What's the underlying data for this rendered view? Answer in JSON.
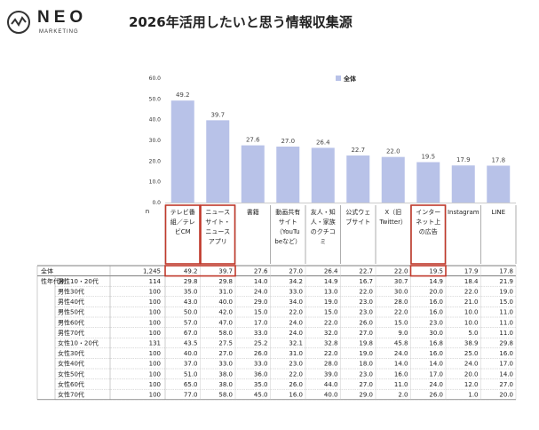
{
  "brand": {
    "name": "NEO",
    "sub": "MARKETING"
  },
  "title": "2026年活用したいと思う情報収集源",
  "chart_data": {
    "type": "bar",
    "legend": "全体",
    "legend_position": "top-right",
    "ylim": [
      0,
      60
    ],
    "yticks": [
      "0.0",
      "10.0",
      "20.0",
      "30.0",
      "40.0",
      "50.0",
      "60.0"
    ],
    "n_label": "n",
    "categories": [
      [
        "テレビ番",
        "組／テレ",
        "ビCM"
      ],
      [
        "ニュース",
        "サイト・",
        "ニュース",
        "アプリ"
      ],
      [
        "書籍"
      ],
      [
        "動画共有",
        "サイト",
        "（YouTu",
        "beなど）"
      ],
      [
        "友人・知",
        "人・家族",
        "のクチコ",
        "ミ"
      ],
      [
        "公式ウェ",
        "ブサイト"
      ],
      [
        "X（旧",
        "Twitter）"
      ],
      [
        "インター",
        "ネット上",
        "の広告"
      ],
      [
        "Instagram"
      ],
      [
        "LINE"
      ]
    ],
    "values": [
      49.2,
      39.7,
      27.6,
      27.0,
      26.4,
      22.7,
      22.0,
      19.5,
      17.9,
      17.8
    ],
    "value_labels": [
      "49.2",
      "39.7",
      "27.6",
      "27.0",
      "26.4",
      "22.7",
      "22.0",
      "19.5",
      "17.9",
      "17.8"
    ],
    "bar_color": "#b8c2e8",
    "highlight_color": "#c0392b",
    "highlight_columns": [
      0,
      1,
      7
    ],
    "table": {
      "group_label": "性年代別",
      "rows": [
        {
          "label": "全体",
          "n": "1,245",
          "values": [
            "49.2",
            "39.7",
            "27.6",
            "27.0",
            "26.4",
            "22.7",
            "22.0",
            "19.5",
            "17.9",
            "17.8"
          ]
        },
        {
          "label": "男性10・20代",
          "n": "114",
          "values": [
            "29.8",
            "29.8",
            "14.0",
            "34.2",
            "14.9",
            "16.7",
            "30.7",
            "14.9",
            "18.4",
            "21.9"
          ]
        },
        {
          "label": "男性30代",
          "n": "100",
          "values": [
            "35.0",
            "31.0",
            "24.0",
            "33.0",
            "13.0",
            "22.0",
            "30.0",
            "20.0",
            "22.0",
            "19.0"
          ]
        },
        {
          "label": "男性40代",
          "n": "100",
          "values": [
            "43.0",
            "40.0",
            "29.0",
            "34.0",
            "19.0",
            "23.0",
            "28.0",
            "16.0",
            "21.0",
            "15.0"
          ]
        },
        {
          "label": "男性50代",
          "n": "100",
          "values": [
            "50.0",
            "42.0",
            "15.0",
            "22.0",
            "15.0",
            "23.0",
            "22.0",
            "16.0",
            "10.0",
            "11.0"
          ]
        },
        {
          "label": "男性60代",
          "n": "100",
          "values": [
            "57.0",
            "47.0",
            "17.0",
            "24.0",
            "22.0",
            "26.0",
            "15.0",
            "23.0",
            "10.0",
            "11.0"
          ]
        },
        {
          "label": "男性70代",
          "n": "100",
          "values": [
            "67.0",
            "58.0",
            "33.0",
            "24.0",
            "32.0",
            "27.0",
            "9.0",
            "30.0",
            "5.0",
            "11.0"
          ]
        },
        {
          "label": "女性10・20代",
          "n": "131",
          "values": [
            "43.5",
            "27.5",
            "25.2",
            "32.1",
            "32.8",
            "19.8",
            "45.8",
            "16.8",
            "38.9",
            "29.8"
          ]
        },
        {
          "label": "女性30代",
          "n": "100",
          "values": [
            "40.0",
            "27.0",
            "26.0",
            "31.0",
            "22.0",
            "19.0",
            "24.0",
            "16.0",
            "25.0",
            "16.0"
          ]
        },
        {
          "label": "女性40代",
          "n": "100",
          "values": [
            "37.0",
            "33.0",
            "33.0",
            "23.0",
            "28.0",
            "18.0",
            "14.0",
            "14.0",
            "24.0",
            "17.0"
          ]
        },
        {
          "label": "女性50代",
          "n": "100",
          "values": [
            "51.0",
            "38.0",
            "36.0",
            "22.0",
            "39.0",
            "23.0",
            "16.0",
            "17.0",
            "20.0",
            "14.0"
          ]
        },
        {
          "label": "女性60代",
          "n": "100",
          "values": [
            "65.0",
            "38.0",
            "35.0",
            "26.0",
            "44.0",
            "27.0",
            "11.0",
            "24.0",
            "12.0",
            "27.0"
          ]
        },
        {
          "label": "女性70代",
          "n": "100",
          "values": [
            "77.0",
            "58.0",
            "45.0",
            "16.0",
            "40.0",
            "29.0",
            "2.0",
            "26.0",
            "1.0",
            "20.0"
          ]
        }
      ]
    }
  }
}
